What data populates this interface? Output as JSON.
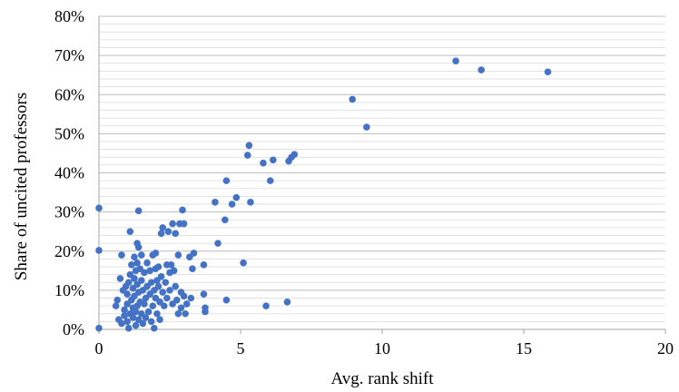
{
  "chart_data": {
    "type": "scatter",
    "title": "",
    "xlabel": "Avg. rank shift",
    "ylabel": "Share of uncited professors",
    "xlim": [
      0,
      20
    ],
    "ylim": [
      0,
      0.8
    ],
    "x_ticks": [
      0,
      5,
      10,
      15,
      20
    ],
    "x_tick_labels": [
      "0",
      "5",
      "10",
      "15",
      "20"
    ],
    "y_ticks": [
      0,
      0.1,
      0.2,
      0.3,
      0.4,
      0.5,
      0.6,
      0.7,
      0.8
    ],
    "y_tick_labels": [
      "0%",
      "10%",
      "20%",
      "30%",
      "40%",
      "50%",
      "60%",
      "70%",
      "80%"
    ],
    "grid": "horizontal minor gridlines",
    "legend": "none",
    "colors": {
      "marker": "#4472C4",
      "grid": "#D9D9D9",
      "axis": "#A6A6A6"
    },
    "series": [
      {
        "points": [
          [
            0,
            0.31
          ],
          [
            0,
            0.202
          ],
          [
            0,
            0.003
          ],
          [
            0.6,
            0.06
          ],
          [
            0.65,
            0.075
          ],
          [
            0.7,
            0.025
          ],
          [
            0.75,
            0.13
          ],
          [
            0.8,
            0.19
          ],
          [
            0.8,
            0.015
          ],
          [
            0.85,
            0.1
          ],
          [
            0.9,
            0.05
          ],
          [
            0.9,
            0.035
          ],
          [
            0.95,
            0.11
          ],
          [
            1.0,
            0.02
          ],
          [
            1.0,
            0.065
          ],
          [
            1.0,
            0.09
          ],
          [
            1.05,
            0.12
          ],
          [
            1.05,
            0.003
          ],
          [
            1.1,
            0.25
          ],
          [
            1.1,
            0.14
          ],
          [
            1.1,
            0.04
          ],
          [
            1.15,
            0.165
          ],
          [
            1.15,
            0.075
          ],
          [
            1.2,
            0.105
          ],
          [
            1.2,
            0.055
          ],
          [
            1.2,
            0.03
          ],
          [
            1.25,
            0.185
          ],
          [
            1.25,
            0.13
          ],
          [
            1.25,
            0.085
          ],
          [
            1.3,
            0.15
          ],
          [
            1.3,
            0.045
          ],
          [
            1.3,
            0.01
          ],
          [
            1.35,
            0.22
          ],
          [
            1.35,
            0.17
          ],
          [
            1.35,
            0.115
          ],
          [
            1.35,
            0.06
          ],
          [
            1.4,
            0.303
          ],
          [
            1.4,
            0.21
          ],
          [
            1.4,
            0.095
          ],
          [
            1.4,
            0.025
          ],
          [
            1.45,
            0.155
          ],
          [
            1.45,
            0.07
          ],
          [
            1.5,
            0.19
          ],
          [
            1.5,
            0.125
          ],
          [
            1.5,
            0.04
          ],
          [
            1.55,
            0.1
          ],
          [
            1.55,
            0.015
          ],
          [
            1.6,
            0.145
          ],
          [
            1.6,
            0.065
          ],
          [
            1.65,
            0.08
          ],
          [
            1.65,
            0.03
          ],
          [
            1.7,
            0.17
          ],
          [
            1.7,
            0.11
          ],
          [
            1.75,
            0.045
          ],
          [
            1.8,
            0.15
          ],
          [
            1.8,
            0.09
          ],
          [
            1.85,
            0.12
          ],
          [
            1.85,
            0.02
          ],
          [
            1.9,
            0.19
          ],
          [
            1.9,
            0.06
          ],
          [
            1.95,
            0.1
          ],
          [
            1.95,
            0.003
          ],
          [
            2.0,
            0.195
          ],
          [
            2.0,
            0.155
          ],
          [
            2.0,
            0.08
          ],
          [
            2.05,
            0.125
          ],
          [
            2.05,
            0.04
          ],
          [
            2.1,
            0.16
          ],
          [
            2.1,
            0.11
          ],
          [
            2.15,
            0.07
          ],
          [
            2.15,
            0.025
          ],
          [
            2.2,
            0.245
          ],
          [
            2.2,
            0.135
          ],
          [
            2.25,
            0.26
          ],
          [
            2.25,
            0.095
          ],
          [
            2.3,
            0.06
          ],
          [
            2.35,
            0.12
          ],
          [
            2.4,
            0.165
          ],
          [
            2.4,
            0.08
          ],
          [
            2.45,
            0.25
          ],
          [
            2.5,
            0.145
          ],
          [
            2.5,
            0.1
          ],
          [
            2.55,
            0.165
          ],
          [
            2.6,
            0.27
          ],
          [
            2.6,
            0.065
          ],
          [
            2.65,
            0.15
          ],
          [
            2.7,
            0.245
          ],
          [
            2.7,
            0.11
          ],
          [
            2.75,
            0.075
          ],
          [
            2.8,
            0.19
          ],
          [
            2.8,
            0.04
          ],
          [
            2.85,
            0.27
          ],
          [
            2.9,
            0.095
          ],
          [
            2.9,
            0.055
          ],
          [
            2.95,
            0.305
          ],
          [
            3.0,
            0.27
          ],
          [
            3.0,
            0.085
          ],
          [
            3.05,
            0.04
          ],
          [
            3.1,
            0.065
          ],
          [
            3.2,
            0.185
          ],
          [
            3.25,
            0.08
          ],
          [
            3.3,
            0.155
          ],
          [
            3.35,
            0.195
          ],
          [
            3.7,
            0.165
          ],
          [
            3.7,
            0.09
          ],
          [
            3.75,
            0.055
          ],
          [
            3.75,
            0.045
          ],
          [
            4.1,
            0.325
          ],
          [
            4.2,
            0.22
          ],
          [
            4.45,
            0.28
          ],
          [
            4.5,
            0.38
          ],
          [
            4.5,
            0.075
          ],
          [
            4.7,
            0.32
          ],
          [
            4.85,
            0.337
          ],
          [
            5.1,
            0.17
          ],
          [
            5.25,
            0.445
          ],
          [
            5.3,
            0.47
          ],
          [
            5.35,
            0.325
          ],
          [
            5.8,
            0.425
          ],
          [
            5.9,
            0.06
          ],
          [
            6.05,
            0.38
          ],
          [
            6.15,
            0.433
          ],
          [
            6.65,
            0.07
          ],
          [
            6.7,
            0.43
          ],
          [
            6.8,
            0.44
          ],
          [
            6.9,
            0.447
          ],
          [
            8.95,
            0.588
          ],
          [
            9.45,
            0.517
          ],
          [
            12.6,
            0.686
          ],
          [
            13.5,
            0.663
          ],
          [
            15.85,
            0.658
          ]
        ]
      }
    ]
  }
}
